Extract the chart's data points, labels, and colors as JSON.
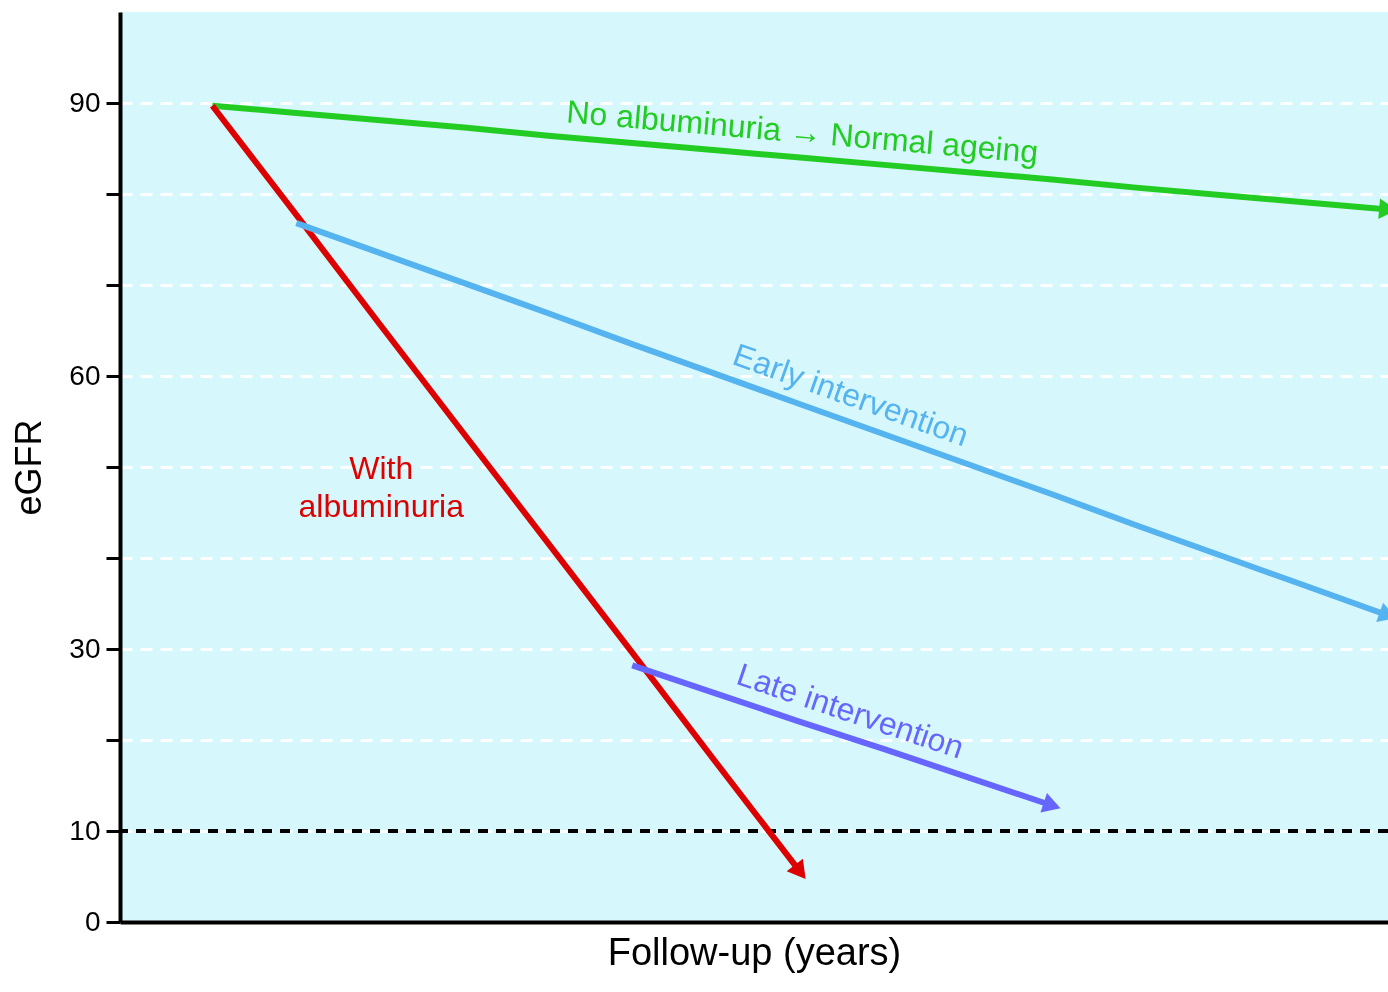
{
  "chart_data": {
    "type": "line",
    "xlabel": "Follow-up (years)",
    "ylabel": "eGFR",
    "categories": [
      null,
      null,
      null,
      null,
      null,
      null,
      null,
      null,
      null,
      null,
      null,
      null,
      null,
      null,
      null,
      null
    ],
    "ylim": [
      0,
      100
    ],
    "yticks": [
      0,
      10,
      {
        "value": 20,
        "label": null
      },
      30,
      {
        "value": 40,
        "label": null
      },
      {
        "value": 50,
        "label": null
      },
      60,
      {
        "value": 70,
        "label": null
      },
      {
        "value": 80,
        "label": null
      },
      90
    ],
    "grid": "y",
    "line_style": "solid",
    "ref_lines": [
      {
        "axis": "y",
        "value": 10,
        "color": "#000000",
        "line_style": "dashed"
      }
    ],
    "series": [
      {
        "name": "No albuminuria → Normal ageing",
        "color": "#22cc22",
        "values": [
          null,
          89.7,
          88.9,
          88.1,
          87.3,
          86.4,
          85.6,
          84.8,
          84.0,
          83.2,
          82.4,
          81.6,
          80.7,
          79.9,
          79.1,
          78.3
        ]
      },
      {
        "name": "With albuminuria",
        "color": "#dd0000",
        "values": [
          null,
          89.7,
          77.7,
          65.6,
          53.6,
          41.6,
          29.6,
          17.5,
          5.5,
          null,
          null,
          null,
          null,
          null,
          null,
          null
        ]
      },
      {
        "name": "Early intervention",
        "color": "#55b4f0",
        "values": [
          null,
          null,
          76.8,
          73.5,
          70.2,
          66.9,
          63.5,
          60.2,
          56.9,
          53.6,
          50.3,
          47.0,
          43.6,
          40.3,
          37.0,
          33.7
        ]
      },
      {
        "name": "Late intervention",
        "color": "#6666ff",
        "values": [
          null,
          null,
          null,
          null,
          null,
          null,
          28.2,
          25.1,
          22.0,
          19.0,
          15.9,
          12.8,
          null,
          null,
          null,
          null
        ]
      }
    ]
  }
}
